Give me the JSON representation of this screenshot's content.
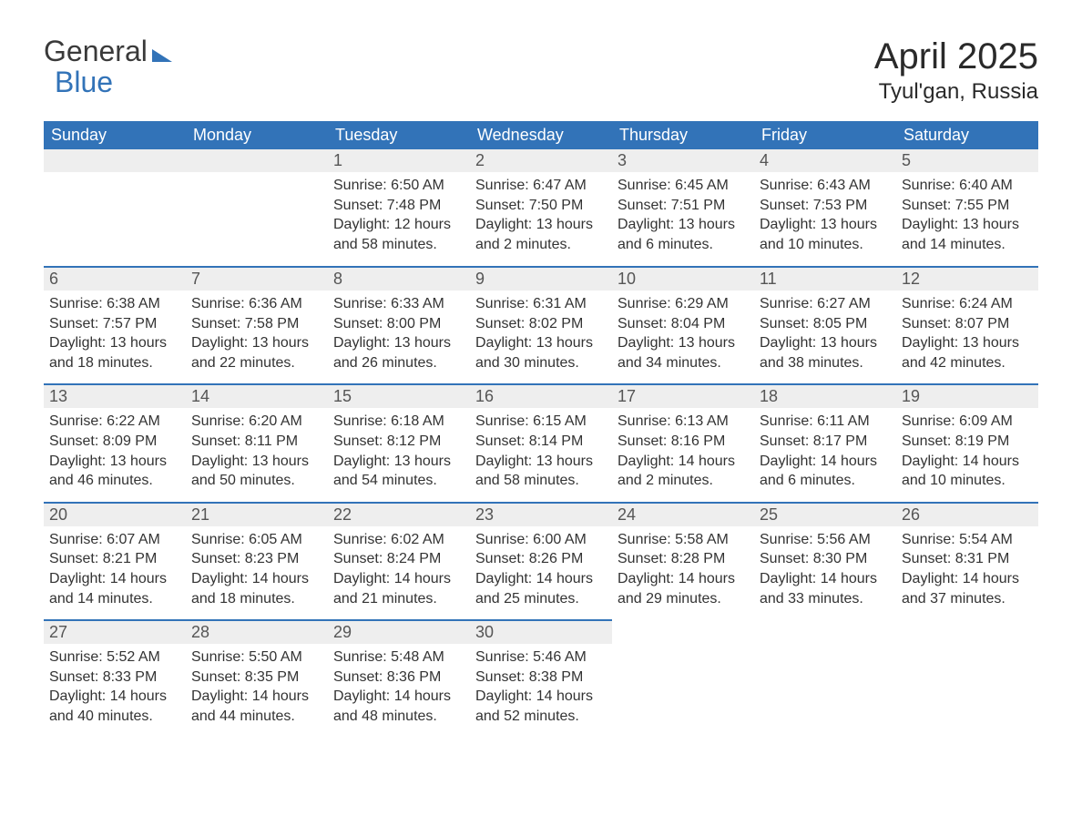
{
  "logo": {
    "word1": "General",
    "word2": "Blue"
  },
  "title": "April 2025",
  "subtitle": "Tyul'gan, Russia",
  "colors": {
    "header_bg": "#3273b8",
    "header_text": "#ffffff",
    "daynum_bg": "#eeeeee",
    "row_border": "#3273b8",
    "body_text": "#333333",
    "background": "#ffffff"
  },
  "day_headers": [
    "Sunday",
    "Monday",
    "Tuesday",
    "Wednesday",
    "Thursday",
    "Friday",
    "Saturday"
  ],
  "weeks": [
    [
      {
        "n": "",
        "sunrise": "",
        "sunset": "",
        "daylight": ""
      },
      {
        "n": "",
        "sunrise": "",
        "sunset": "",
        "daylight": ""
      },
      {
        "n": "1",
        "sunrise": "Sunrise: 6:50 AM",
        "sunset": "Sunset: 7:48 PM",
        "daylight": "Daylight: 12 hours and 58 minutes."
      },
      {
        "n": "2",
        "sunrise": "Sunrise: 6:47 AM",
        "sunset": "Sunset: 7:50 PM",
        "daylight": "Daylight: 13 hours and 2 minutes."
      },
      {
        "n": "3",
        "sunrise": "Sunrise: 6:45 AM",
        "sunset": "Sunset: 7:51 PM",
        "daylight": "Daylight: 13 hours and 6 minutes."
      },
      {
        "n": "4",
        "sunrise": "Sunrise: 6:43 AM",
        "sunset": "Sunset: 7:53 PM",
        "daylight": "Daylight: 13 hours and 10 minutes."
      },
      {
        "n": "5",
        "sunrise": "Sunrise: 6:40 AM",
        "sunset": "Sunset: 7:55 PM",
        "daylight": "Daylight: 13 hours and 14 minutes."
      }
    ],
    [
      {
        "n": "6",
        "sunrise": "Sunrise: 6:38 AM",
        "sunset": "Sunset: 7:57 PM",
        "daylight": "Daylight: 13 hours and 18 minutes."
      },
      {
        "n": "7",
        "sunrise": "Sunrise: 6:36 AM",
        "sunset": "Sunset: 7:58 PM",
        "daylight": "Daylight: 13 hours and 22 minutes."
      },
      {
        "n": "8",
        "sunrise": "Sunrise: 6:33 AM",
        "sunset": "Sunset: 8:00 PM",
        "daylight": "Daylight: 13 hours and 26 minutes."
      },
      {
        "n": "9",
        "sunrise": "Sunrise: 6:31 AM",
        "sunset": "Sunset: 8:02 PM",
        "daylight": "Daylight: 13 hours and 30 minutes."
      },
      {
        "n": "10",
        "sunrise": "Sunrise: 6:29 AM",
        "sunset": "Sunset: 8:04 PM",
        "daylight": "Daylight: 13 hours and 34 minutes."
      },
      {
        "n": "11",
        "sunrise": "Sunrise: 6:27 AM",
        "sunset": "Sunset: 8:05 PM",
        "daylight": "Daylight: 13 hours and 38 minutes."
      },
      {
        "n": "12",
        "sunrise": "Sunrise: 6:24 AM",
        "sunset": "Sunset: 8:07 PM",
        "daylight": "Daylight: 13 hours and 42 minutes."
      }
    ],
    [
      {
        "n": "13",
        "sunrise": "Sunrise: 6:22 AM",
        "sunset": "Sunset: 8:09 PM",
        "daylight": "Daylight: 13 hours and 46 minutes."
      },
      {
        "n": "14",
        "sunrise": "Sunrise: 6:20 AM",
        "sunset": "Sunset: 8:11 PM",
        "daylight": "Daylight: 13 hours and 50 minutes."
      },
      {
        "n": "15",
        "sunrise": "Sunrise: 6:18 AM",
        "sunset": "Sunset: 8:12 PM",
        "daylight": "Daylight: 13 hours and 54 minutes."
      },
      {
        "n": "16",
        "sunrise": "Sunrise: 6:15 AM",
        "sunset": "Sunset: 8:14 PM",
        "daylight": "Daylight: 13 hours and 58 minutes."
      },
      {
        "n": "17",
        "sunrise": "Sunrise: 6:13 AM",
        "sunset": "Sunset: 8:16 PM",
        "daylight": "Daylight: 14 hours and 2 minutes."
      },
      {
        "n": "18",
        "sunrise": "Sunrise: 6:11 AM",
        "sunset": "Sunset: 8:17 PM",
        "daylight": "Daylight: 14 hours and 6 minutes."
      },
      {
        "n": "19",
        "sunrise": "Sunrise: 6:09 AM",
        "sunset": "Sunset: 8:19 PM",
        "daylight": "Daylight: 14 hours and 10 minutes."
      }
    ],
    [
      {
        "n": "20",
        "sunrise": "Sunrise: 6:07 AM",
        "sunset": "Sunset: 8:21 PM",
        "daylight": "Daylight: 14 hours and 14 minutes."
      },
      {
        "n": "21",
        "sunrise": "Sunrise: 6:05 AM",
        "sunset": "Sunset: 8:23 PM",
        "daylight": "Daylight: 14 hours and 18 minutes."
      },
      {
        "n": "22",
        "sunrise": "Sunrise: 6:02 AM",
        "sunset": "Sunset: 8:24 PM",
        "daylight": "Daylight: 14 hours and 21 minutes."
      },
      {
        "n": "23",
        "sunrise": "Sunrise: 6:00 AM",
        "sunset": "Sunset: 8:26 PM",
        "daylight": "Daylight: 14 hours and 25 minutes."
      },
      {
        "n": "24",
        "sunrise": "Sunrise: 5:58 AM",
        "sunset": "Sunset: 8:28 PM",
        "daylight": "Daylight: 14 hours and 29 minutes."
      },
      {
        "n": "25",
        "sunrise": "Sunrise: 5:56 AM",
        "sunset": "Sunset: 8:30 PM",
        "daylight": "Daylight: 14 hours and 33 minutes."
      },
      {
        "n": "26",
        "sunrise": "Sunrise: 5:54 AM",
        "sunset": "Sunset: 8:31 PM",
        "daylight": "Daylight: 14 hours and 37 minutes."
      }
    ],
    [
      {
        "n": "27",
        "sunrise": "Sunrise: 5:52 AM",
        "sunset": "Sunset: 8:33 PM",
        "daylight": "Daylight: 14 hours and 40 minutes."
      },
      {
        "n": "28",
        "sunrise": "Sunrise: 5:50 AM",
        "sunset": "Sunset: 8:35 PM",
        "daylight": "Daylight: 14 hours and 44 minutes."
      },
      {
        "n": "29",
        "sunrise": "Sunrise: 5:48 AM",
        "sunset": "Sunset: 8:36 PM",
        "daylight": "Daylight: 14 hours and 48 minutes."
      },
      {
        "n": "30",
        "sunrise": "Sunrise: 5:46 AM",
        "sunset": "Sunset: 8:38 PM",
        "daylight": "Daylight: 14 hours and 52 minutes."
      },
      {
        "n": "",
        "sunrise": "",
        "sunset": "",
        "daylight": ""
      },
      {
        "n": "",
        "sunrise": "",
        "sunset": "",
        "daylight": ""
      },
      {
        "n": "",
        "sunrise": "",
        "sunset": "",
        "daylight": ""
      }
    ]
  ]
}
